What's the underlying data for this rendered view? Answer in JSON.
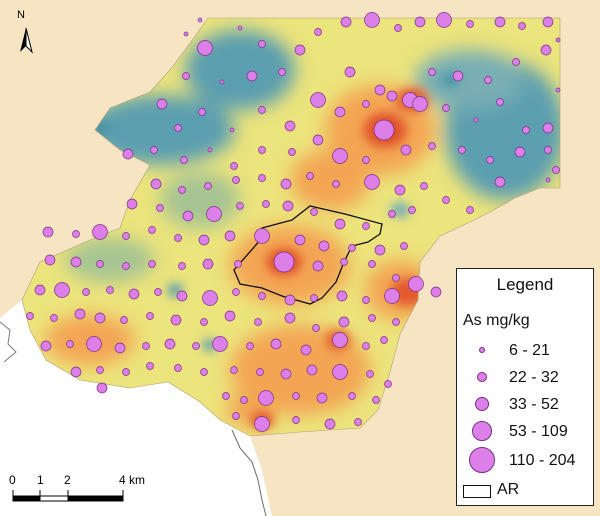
{
  "map": {
    "north_label": "N",
    "colors": {
      "background": "#f6e4c2",
      "sea": "#ffffff",
      "surface_low": "#5c9fb0",
      "surface_mid_low": "#a6c493",
      "surface_mid": "#ece47c",
      "surface_mid_high": "#f3a553",
      "surface_high": "#e25a2e",
      "surface_peak": "#d22e2a",
      "point_fill": "#dd7fe8",
      "point_stroke": "#7a2e86"
    }
  },
  "legend": {
    "title": "Legend",
    "variable": "As mg/kg",
    "classes": [
      {
        "label": "6 - 21"
      },
      {
        "label": "22 - 32"
      },
      {
        "label": "33 - 52"
      },
      {
        "label": "53 - 109"
      },
      {
        "label": "110 - 204"
      }
    ],
    "ar_label": "AR"
  },
  "scale_bar": {
    "labels": [
      "0",
      "1",
      "2",
      "4 km"
    ]
  }
}
